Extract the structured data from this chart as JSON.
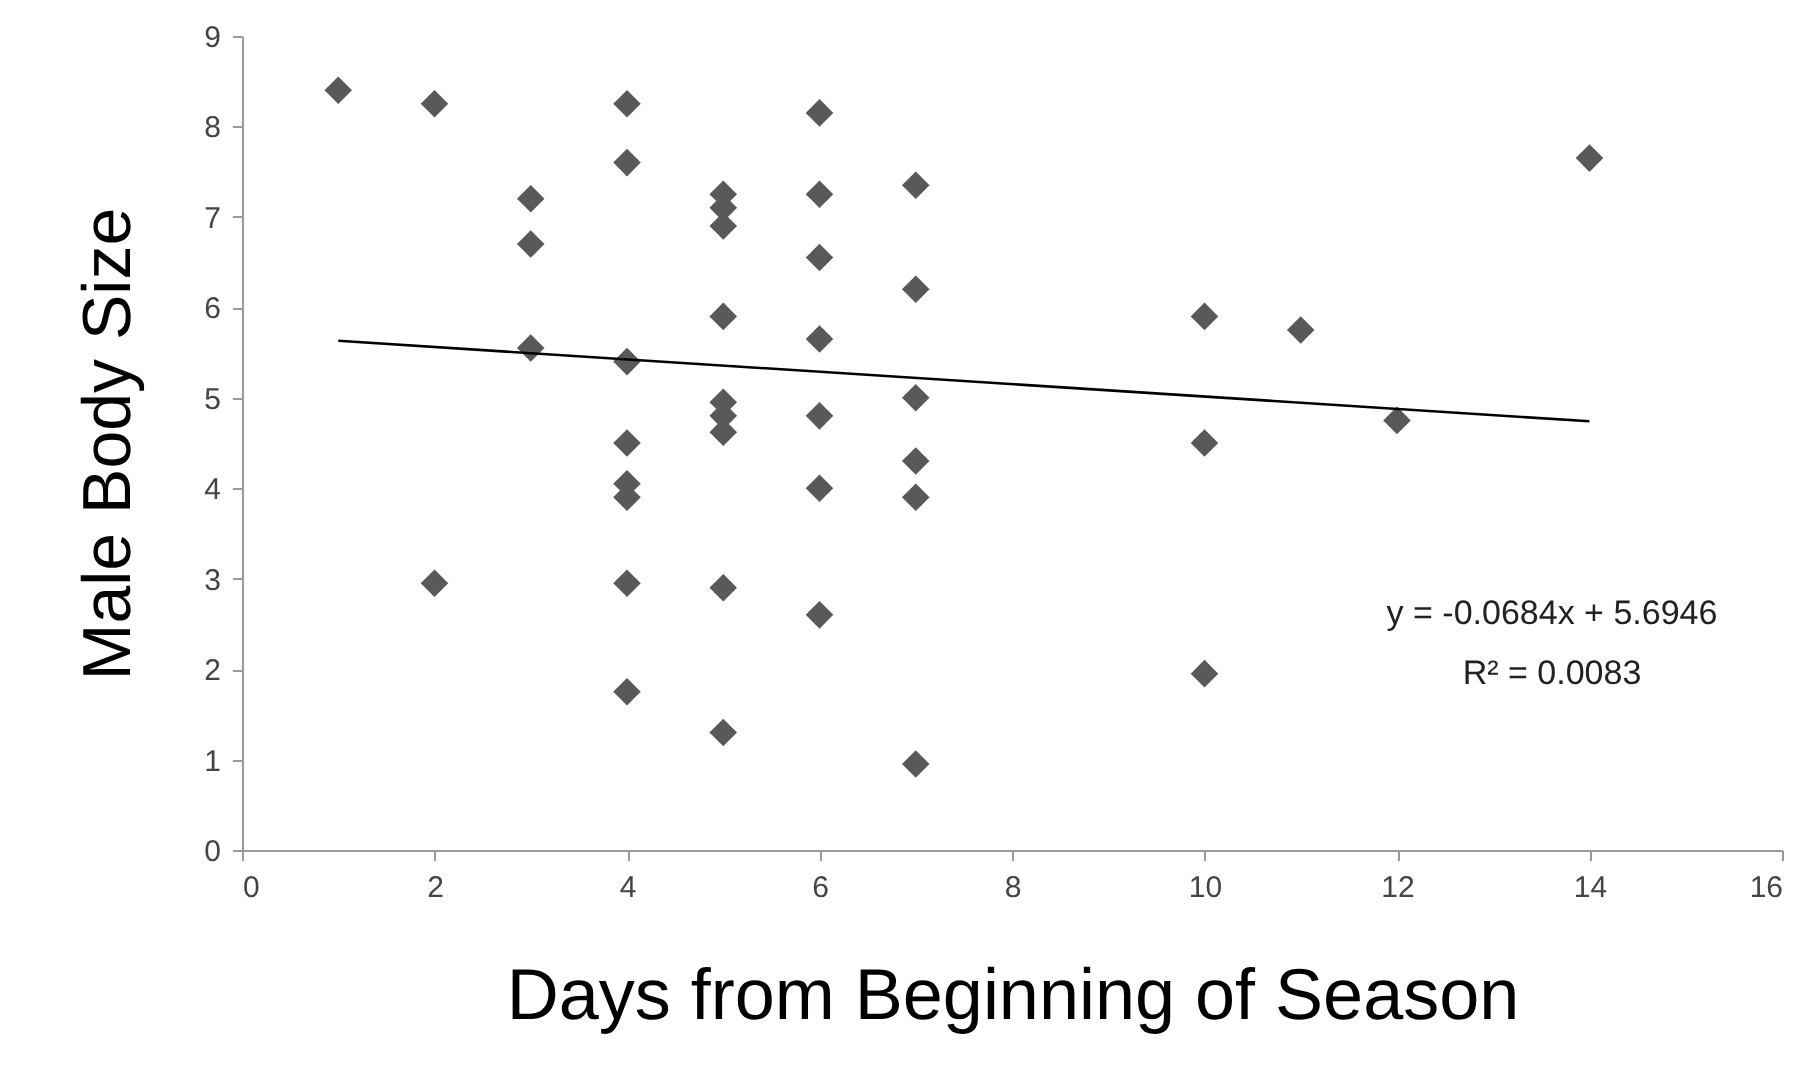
{
  "chart_data": {
    "type": "scatter",
    "xlabel": "Days from Beginning of Season",
    "ylabel": "Male Body Size",
    "xlim": [
      0,
      16
    ],
    "xticks": [
      0,
      2,
      4,
      6,
      8,
      10,
      12,
      14,
      16
    ],
    "ylim": [
      0,
      9
    ],
    "yticks": [
      0,
      1,
      2,
      3,
      4,
      5,
      6,
      7,
      8,
      9
    ],
    "grid": false,
    "series": [
      {
        "color": "#595959",
        "marker": "diamond",
        "x": [
          1,
          2,
          2,
          3,
          3,
          3,
          4,
          4,
          4,
          4,
          4,
          4,
          4,
          4,
          5,
          5,
          5,
          5,
          5,
          5,
          5,
          5,
          5,
          6,
          6,
          6,
          6,
          6,
          6,
          6,
          7,
          7,
          7,
          7,
          7,
          7,
          10,
          10,
          10,
          11,
          12,
          14
        ],
        "values": [
          8.4,
          8.25,
          2.95,
          7.2,
          6.7,
          5.55,
          8.25,
          7.6,
          5.4,
          4.5,
          4.05,
          3.9,
          2.95,
          1.75,
          7.25,
          7.1,
          6.9,
          5.9,
          4.95,
          4.8,
          4.62,
          2.9,
          1.3,
          8.15,
          7.25,
          6.55,
          5.65,
          4.8,
          4.0,
          2.6,
          7.35,
          6.2,
          5.0,
          4.3,
          3.9,
          0.95,
          5.9,
          4.5,
          1.95,
          5.75,
          4.75,
          7.65
        ]
      },
      {
        "type": "line",
        "color": "#000000",
        "x": [
          1,
          14
        ],
        "values": [
          5.63,
          4.74
        ]
      }
    ],
    "annotations": [
      "y = -0.0684x + 5.6946",
      "R² = 0.0083"
    ]
  }
}
